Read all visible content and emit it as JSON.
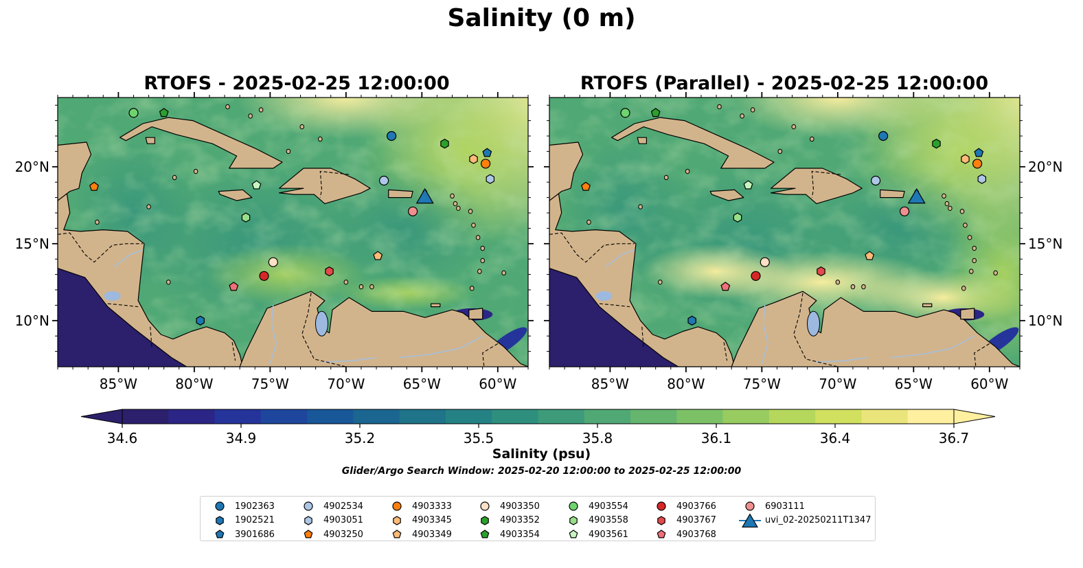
{
  "title": "Salinity (0 m)",
  "panels": [
    {
      "title": "RTOFS - 2025-02-25 12:00:00",
      "variant": "rtofs"
    },
    {
      "title": "RTOFS (Parallel) - 2025-02-25 12:00:00",
      "variant": "parallel"
    }
  ],
  "map": {
    "extent": {
      "lon": [
        -89,
        -58
      ],
      "lat": [
        7,
        24.5
      ]
    },
    "x_ticks": [
      {
        "lon": -85,
        "label": "85°W"
      },
      {
        "lon": -80,
        "label": "80°W"
      },
      {
        "lon": -75,
        "label": "75°W"
      },
      {
        "lon": -70,
        "label": "70°W"
      },
      {
        "lon": -65,
        "label": "65°W"
      },
      {
        "lon": -60,
        "label": "60°W"
      }
    ],
    "y_ticks": [
      {
        "lat": 20,
        "label": "20°N"
      },
      {
        "lat": 15,
        "label": "15°N"
      },
      {
        "lat": 10,
        "label": "10°N"
      }
    ],
    "colors": {
      "land": "#d2b48c",
      "lake": "#9db9e0",
      "river": "#a7bfd9",
      "coast": "#000000",
      "deep_low": "#2a1a6a"
    }
  },
  "colorbar": {
    "label": "Salinity (psu)",
    "range": [
      34.6,
      36.7
    ],
    "ticks": [
      "34.6",
      "34.9",
      "35.2",
      "35.5",
      "35.8",
      "36.1",
      "36.4",
      "36.7"
    ],
    "colors": [
      "#2c1f6c",
      "#2b2586",
      "#25349a",
      "#1e469d",
      "#185798",
      "#1a6690",
      "#1f7489",
      "#258284",
      "#2e8f7f",
      "#3d9b7a",
      "#50a875",
      "#65b56f",
      "#7dc167",
      "#98cc60",
      "#b5d75c",
      "#d1e05f",
      "#eae57a",
      "#fff0a0"
    ]
  },
  "search_window": "Glider/Argo Search Window: 2025-02-20 12:00:00 to 2025-02-25 12:00:00",
  "platforms": [
    {
      "id": "1902363",
      "marker": "circle",
      "color": "#1f77b4",
      "lon": -67.0,
      "lat": 22.0
    },
    {
      "id": "1902521",
      "marker": "hexagon",
      "color": "#1f77b4",
      "lon": -79.6,
      "lat": 10.0
    },
    {
      "id": "3901686",
      "marker": "pentagon",
      "color": "#1f77b4",
      "lon": -60.7,
      "lat": 20.9
    },
    {
      "id": "4902534",
      "marker": "circle",
      "color": "#aec7e8",
      "lon": -67.5,
      "lat": 19.1
    },
    {
      "id": "4903051",
      "marker": "hexagon",
      "color": "#aec7e8",
      "lon": -60.5,
      "lat": 19.2
    },
    {
      "id": "4903250",
      "marker": "pentagon",
      "color": "#ff7f0e",
      "lon": -86.6,
      "lat": 18.7
    },
    {
      "id": "4903333",
      "marker": "circle",
      "color": "#ff7f0e",
      "lon": -60.8,
      "lat": 20.2
    },
    {
      "id": "4903345",
      "marker": "hexagon",
      "color": "#ffbb78",
      "lon": -61.6,
      "lat": 20.5
    },
    {
      "id": "4903349",
      "marker": "pentagon",
      "color": "#ffbb78",
      "lon": -67.9,
      "lat": 14.2
    },
    {
      "id": "4903350",
      "marker": "circle",
      "color": "#fde0c5",
      "lon": -74.8,
      "lat": 13.8
    },
    {
      "id": "4903352",
      "marker": "hexagon",
      "color": "#2ca02c",
      "lon": -63.5,
      "lat": 21.5
    },
    {
      "id": "4903354",
      "marker": "pentagon",
      "color": "#2ca02c",
      "lon": -82.0,
      "lat": 23.5
    },
    {
      "id": "4903554",
      "marker": "circle",
      "color": "#6fd36f",
      "lon": -84.0,
      "lat": 23.5
    },
    {
      "id": "4903558",
      "marker": "hexagon",
      "color": "#98df8a",
      "lon": -76.6,
      "lat": 16.7
    },
    {
      "id": "4903561",
      "marker": "pentagon",
      "color": "#c7f5c0",
      "lon": -75.9,
      "lat": 18.8
    },
    {
      "id": "4903766",
      "marker": "circle",
      "color": "#d62728",
      "lon": -75.4,
      "lat": 12.9
    },
    {
      "id": "4903767",
      "marker": "hexagon",
      "color": "#e34a4b",
      "lon": -71.1,
      "lat": 13.2
    },
    {
      "id": "4903768",
      "marker": "pentagon",
      "color": "#f0707a",
      "lon": -77.4,
      "lat": 12.2
    },
    {
      "id": "6903111",
      "marker": "circle",
      "color": "#f08f8f",
      "lon": -65.6,
      "lat": 17.1
    },
    {
      "id": "uvi_02-20250211T1347",
      "marker": "triangle",
      "color": "#1f77b4",
      "lon": -64.8,
      "lat": 18.1
    }
  ]
}
